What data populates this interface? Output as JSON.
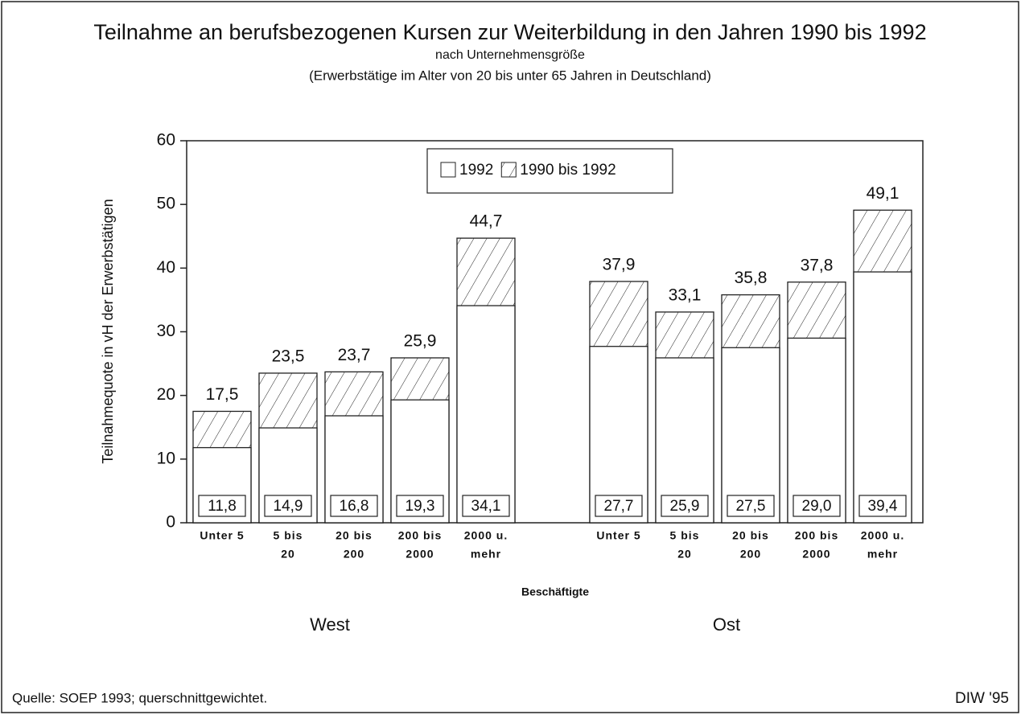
{
  "chart_data": {
    "type": "bar",
    "title": "Teilnahme an berufsbezogenen Kursen zur Weiterbildung in den Jahren 1990 bis 1992",
    "subtitle": [
      "nach Unternehmensgröße",
      "(Erwerbstätige im Alter von 20 bis unter 65 Jahren in Deutschland)"
    ],
    "ylabel": "Teilnahmequote in vH der Erwerbstätigen",
    "xlabel": "Beschäftigte",
    "ylim": [
      0,
      60
    ],
    "yticks": [
      0,
      10,
      20,
      30,
      40,
      50,
      60
    ],
    "series": [
      {
        "name": "1992",
        "color": "#ffffff"
      },
      {
        "name": "1990 bis 1992",
        "color": "hatch"
      }
    ],
    "groups": [
      {
        "name": "West",
        "categories": [
          [
            "Unter 5"
          ],
          [
            "5 bis",
            "20"
          ],
          [
            "20 bis",
            "200"
          ],
          [
            "200 bis",
            "2000"
          ],
          [
            "2000 u.",
            "mehr"
          ]
        ],
        "series": [
          {
            "values": [
              11.8,
              14.9,
              16.8,
              19.3,
              34.1
            ],
            "value_labels": [
              "11,8",
              "14,9",
              "16,8",
              "19,3",
              "34,1"
            ]
          },
          {
            "values": [
              17.5,
              23.5,
              23.7,
              25.9,
              44.7
            ],
            "value_labels": [
              "17,5",
              "23,5",
              "23,7",
              "25,9",
              "44,7"
            ]
          }
        ]
      },
      {
        "name": "Ost",
        "categories": [
          [
            "Unter 5"
          ],
          [
            "5 bis",
            "20"
          ],
          [
            "20 bis",
            "200"
          ],
          [
            "200 bis",
            "2000"
          ],
          [
            "2000 u.",
            "mehr"
          ]
        ],
        "series": [
          {
            "values": [
              27.7,
              25.9,
              27.5,
              29.0,
              39.4
            ],
            "value_labels": [
              "27,7",
              "25,9",
              "27,5",
              "29,0",
              "39,4"
            ]
          },
          {
            "values": [
              37.9,
              33.1,
              35.8,
              37.8,
              49.1
            ],
            "value_labels": [
              "37,9",
              "33,1",
              "35,8",
              "37,8",
              "49,1"
            ]
          }
        ]
      }
    ],
    "source": "Quelle: SOEP 1993; querschnittgewichtet.",
    "credit": "DIW '95"
  }
}
